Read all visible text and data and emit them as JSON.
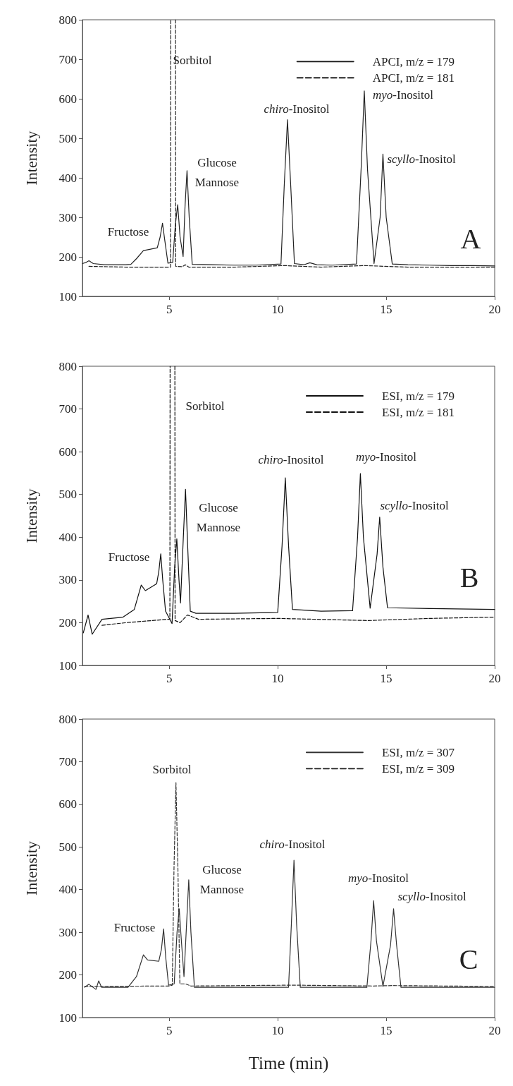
{
  "chart_data": [
    {
      "type": "line",
      "ylabel": "Intensity",
      "xlim": [
        1,
        20
      ],
      "xticks": [
        5,
        10,
        15,
        20
      ],
      "ylim": [
        100,
        800
      ],
      "yticks": [
        100,
        200,
        300,
        400,
        500,
        600,
        700,
        800
      ],
      "grid": false,
      "legend": "top right",
      "marker": "none",
      "series": [
        {
          "name": "APCI, m/z = 179",
          "color": "#222222",
          "line_style": "solid",
          "x": [
            1.0,
            1.17,
            1.3,
            1.5,
            2.0,
            2.5,
            3.0,
            3.23,
            3.5,
            3.81,
            4.1,
            4.45,
            4.58,
            4.69,
            4.8,
            4.94,
            5.16,
            5.28,
            5.39,
            5.5,
            5.64,
            5.73,
            5.82,
            5.92,
            6.06,
            7,
            8,
            9,
            10.15,
            10.3,
            10.45,
            10.6,
            10.77,
            11.2,
            11.48,
            11.8,
            12.5,
            13.63,
            13.85,
            13.99,
            14.14,
            14.44,
            14.72,
            14.85,
            15.0,
            15.28,
            16,
            17,
            18,
            19,
            20
          ],
          "values": [
            183,
            186,
            190,
            183,
            180,
            180,
            180,
            181,
            196,
            216,
            219,
            223,
            250,
            285,
            240,
            184,
            186,
            280,
            332,
            250,
            201,
            330,
            418,
            300,
            181,
            180,
            179,
            179,
            182,
            380,
            547,
            380,
            183,
            180,
            185,
            180,
            179,
            182,
            430,
            620,
            420,
            183,
            300,
            460,
            300,
            182,
            180,
            179,
            178,
            178,
            177
          ]
        },
        {
          "name": "APCI, m/z = 181",
          "color": "#222222",
          "line_style": "dashed",
          "x": [
            1.3,
            3,
            4.9,
            5.06,
            5.07,
            5.18,
            5.29,
            5.3,
            5.6,
            5.74,
            5.9,
            8,
            10.3,
            12,
            14.0,
            16,
            20
          ],
          "values": [
            176,
            174,
            174,
            174,
            800,
            null,
            800,
            176,
            175,
            180,
            174,
            174,
            178,
            174,
            178,
            174,
            174
          ]
        }
      ],
      "annotations": [
        "Fructose",
        "Sorbitol",
        "Glucose\nMannose",
        "chiro-Inositol",
        "myo-Inositol",
        "scyllo-Inositol",
        "A"
      ]
    },
    {
      "type": "line",
      "ylabel": "Intensity",
      "xlim": [
        1,
        20
      ],
      "xticks": [
        5,
        10,
        15,
        20
      ],
      "ylim": [
        100,
        800
      ],
      "yticks": [
        100,
        200,
        300,
        400,
        500,
        600,
        700,
        800
      ],
      "grid": false,
      "legend": "top right",
      "marker": "none",
      "series": [
        {
          "name": "ESI, m/z = 179",
          "color": "#111111",
          "line_style": "solid",
          "x": [
            1.04,
            1.26,
            1.45,
            1.9,
            2.87,
            3.39,
            3.71,
            3.9,
            4.42,
            4.52,
            4.61,
            4.7,
            4.83,
            5.13,
            5.25,
            5.35,
            5.45,
            5.52,
            5.65,
            5.75,
            5.85,
            5.97,
            6.23,
            8,
            10.0,
            10.2,
            10.35,
            10.5,
            10.68,
            12,
            13.45,
            13.68,
            13.81,
            13.95,
            14.26,
            14.58,
            14.7,
            14.85,
            15.06,
            17,
            20
          ],
          "values": [
            176,
            218,
            173,
            208,
            213,
            231,
            288,
            275,
            291,
            320,
            361,
            300,
            227,
            198,
            330,
            396,
            300,
            246,
            400,
            512,
            380,
            227,
            222,
            222,
            224,
            380,
            539,
            380,
            231,
            227,
            228,
            400,
            549,
            400,
            234,
            360,
            447,
            330,
            235,
            233,
            231
          ]
        },
        {
          "name": "ESI, m/z = 181",
          "color": "#111111",
          "line_style": "dashed",
          "x": [
            1.9,
            3,
            4.94,
            5.03,
            5.04,
            5.15,
            5.26,
            5.27,
            5.5,
            5.84,
            6.35,
            10,
            14.2,
            17,
            20
          ],
          "values": [
            194,
            200,
            208,
            208,
            800,
            null,
            800,
            205,
            200,
            218,
            208,
            210,
            205,
            210,
            213
          ]
        }
      ],
      "annotations": [
        "Fructose",
        "Sorbitol",
        "Glucose\nMannose",
        "chiro-Inositol",
        "myo-Inositol",
        "scyllo-Inositol",
        "B"
      ]
    },
    {
      "type": "line",
      "xlabel": "Time (min)",
      "ylabel": "Intensity",
      "xlim": [
        1,
        20
      ],
      "xticks": [
        5,
        10,
        15,
        20
      ],
      "ylim": [
        100,
        800
      ],
      "yticks": [
        100,
        200,
        300,
        400,
        500,
        600,
        700,
        800
      ],
      "grid": false,
      "legend": "top right",
      "marker": "none",
      "series": [
        {
          "name": "ESI, m/z = 307",
          "color": "#333333",
          "line_style": "solid",
          "x": [
            1.1,
            1.3,
            1.62,
            1.75,
            1.88,
            3.1,
            3.49,
            3.81,
            4.0,
            4.52,
            4.64,
            4.74,
            4.84,
            4.97,
            5.23,
            5.36,
            5.46,
            5.56,
            5.68,
            5.8,
            5.9,
            6.0,
            6.16,
            8,
            10.5,
            10.63,
            10.75,
            10.87,
            11.04,
            13,
            14.11,
            14.3,
            14.42,
            14.55,
            14.85,
            15.2,
            15.34,
            15.48,
            15.68,
            18,
            20
          ],
          "values": [
            171,
            178,
            166,
            186,
            171,
            171,
            196,
            247,
            235,
            232,
            260,
            308,
            240,
            176,
            179,
            300,
            355,
            280,
            196,
            320,
            423,
            300,
            171,
            171,
            171,
            320,
            469,
            320,
            171,
            171,
            171,
            280,
            374,
            280,
            173,
            270,
            355,
            270,
            171,
            171,
            171
          ]
        },
        {
          "name": "ESI, m/z = 309",
          "color": "#333333",
          "line_style": "dashed",
          "x": [
            1.1,
            5.0,
            5.14,
            5.22,
            5.31,
            5.4,
            5.49,
            5.75,
            6.0,
            10.75,
            14.4,
            15.3,
            20
          ],
          "values": [
            173,
            174,
            176,
            450,
            651,
            450,
            179,
            179,
            174,
            176,
            174,
            175,
            173
          ]
        }
      ],
      "annotations": [
        "Fructose",
        "Sorbitol",
        "Glucose\nMannose",
        "chiro-Inositol",
        "myo-Inositol",
        "scyllo-Inositol",
        "C"
      ]
    }
  ]
}
